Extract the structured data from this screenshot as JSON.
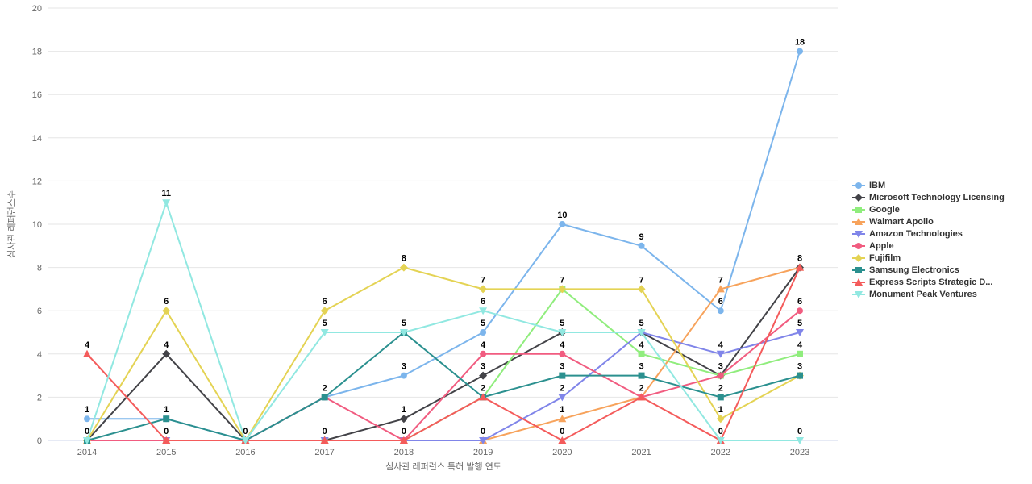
{
  "chart_data": {
    "type": "line",
    "title": "",
    "xlabel": "심사관 레퍼런스 특허 발행 연도",
    "ylabel": "심사관 레퍼런스수",
    "categories": [
      "2014",
      "2015",
      "2016",
      "2017",
      "2018",
      "2019",
      "2020",
      "2021",
      "2022",
      "2023"
    ],
    "ylim": [
      0,
      20
    ],
    "ytick_step": 2,
    "grid": true,
    "legend_position": "right",
    "data_labels": true,
    "series": [
      {
        "name": "IBM",
        "color": "#7cb5ec",
        "marker": "circle",
        "values": [
          1,
          1,
          0,
          2,
          3,
          5,
          10,
          9,
          6,
          18
        ]
      },
      {
        "name": "Microsoft Technology Licensing",
        "color": "#434348",
        "marker": "diamond",
        "values": [
          0,
          4,
          0,
          0,
          1,
          3,
          5,
          5,
          3,
          8
        ]
      },
      {
        "name": "Google",
        "color": "#90ed7d",
        "marker": "square",
        "values": [
          0,
          0,
          0,
          0,
          0,
          2,
          7,
          4,
          3,
          4
        ]
      },
      {
        "name": "Walmart Apollo",
        "color": "#f7a35c",
        "marker": "triangle",
        "values": [
          0,
          0,
          0,
          0,
          0,
          0,
          1,
          2,
          7,
          8
        ]
      },
      {
        "name": "Amazon Technologies",
        "color": "#8085e9",
        "marker": "triangle-down",
        "values": [
          0,
          0,
          0,
          0,
          0,
          0,
          2,
          5,
          4,
          5
        ]
      },
      {
        "name": "Apple",
        "color": "#f15c80",
        "marker": "circle",
        "values": [
          0,
          0,
          0,
          2,
          0,
          4,
          4,
          2,
          3,
          6
        ]
      },
      {
        "name": "Fujifilm",
        "color": "#e4d354",
        "marker": "diamond",
        "values": [
          0,
          6,
          0,
          6,
          8,
          7,
          7,
          7,
          1,
          3
        ]
      },
      {
        "name": "Samsung Electronics",
        "color": "#2b908f",
        "marker": "square",
        "values": [
          0,
          1,
          0,
          2,
          5,
          2,
          3,
          3,
          2,
          3
        ]
      },
      {
        "name": "Express Scripts Strategic D...",
        "color": "#f45b5b",
        "marker": "triangle",
        "values": [
          4,
          0,
          0,
          0,
          0,
          2,
          0,
          2,
          0,
          8
        ]
      },
      {
        "name": "Monument Peak Ventures",
        "color": "#91e8e1",
        "marker": "triangle-down",
        "values": [
          0,
          11,
          0,
          5,
          5,
          6,
          5,
          5,
          0,
          0
        ]
      }
    ]
  },
  "theme": {
    "grid_color": "#e6e6e6",
    "axis_line_color": "#ccd6eb",
    "tick_text_color": "#666666",
    "legend_text_color": "#333333",
    "background": "#ffffff"
  }
}
